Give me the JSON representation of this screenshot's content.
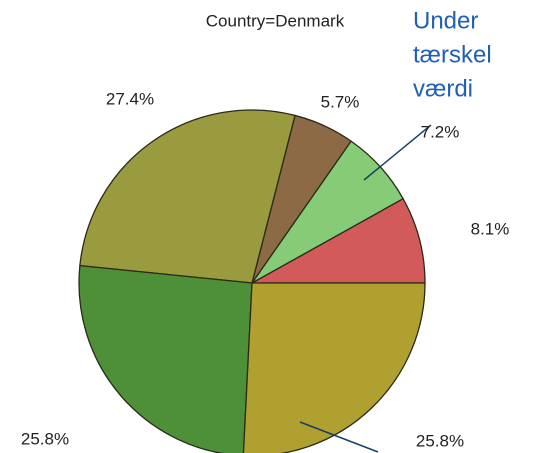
{
  "chart_data": {
    "type": "pie",
    "title": "Country=Denmark",
    "categories": [
      null,
      null,
      null,
      null,
      null,
      null
    ],
    "values": [
      8.1,
      7.2,
      5.7,
      27.4,
      25.8,
      25.8
    ],
    "value_labels": [
      "8.1%",
      "7.2%",
      "5.7%",
      "27.4%",
      "25.8%",
      "25.8%"
    ],
    "colors": [
      "#d35a5a",
      "#86cc76",
      "#8c6a45",
      "#9a9a3e",
      "#4e9038",
      "#b0a030"
    ],
    "annotation": [
      "Under",
      "tærskel",
      "værdi"
    ]
  }
}
